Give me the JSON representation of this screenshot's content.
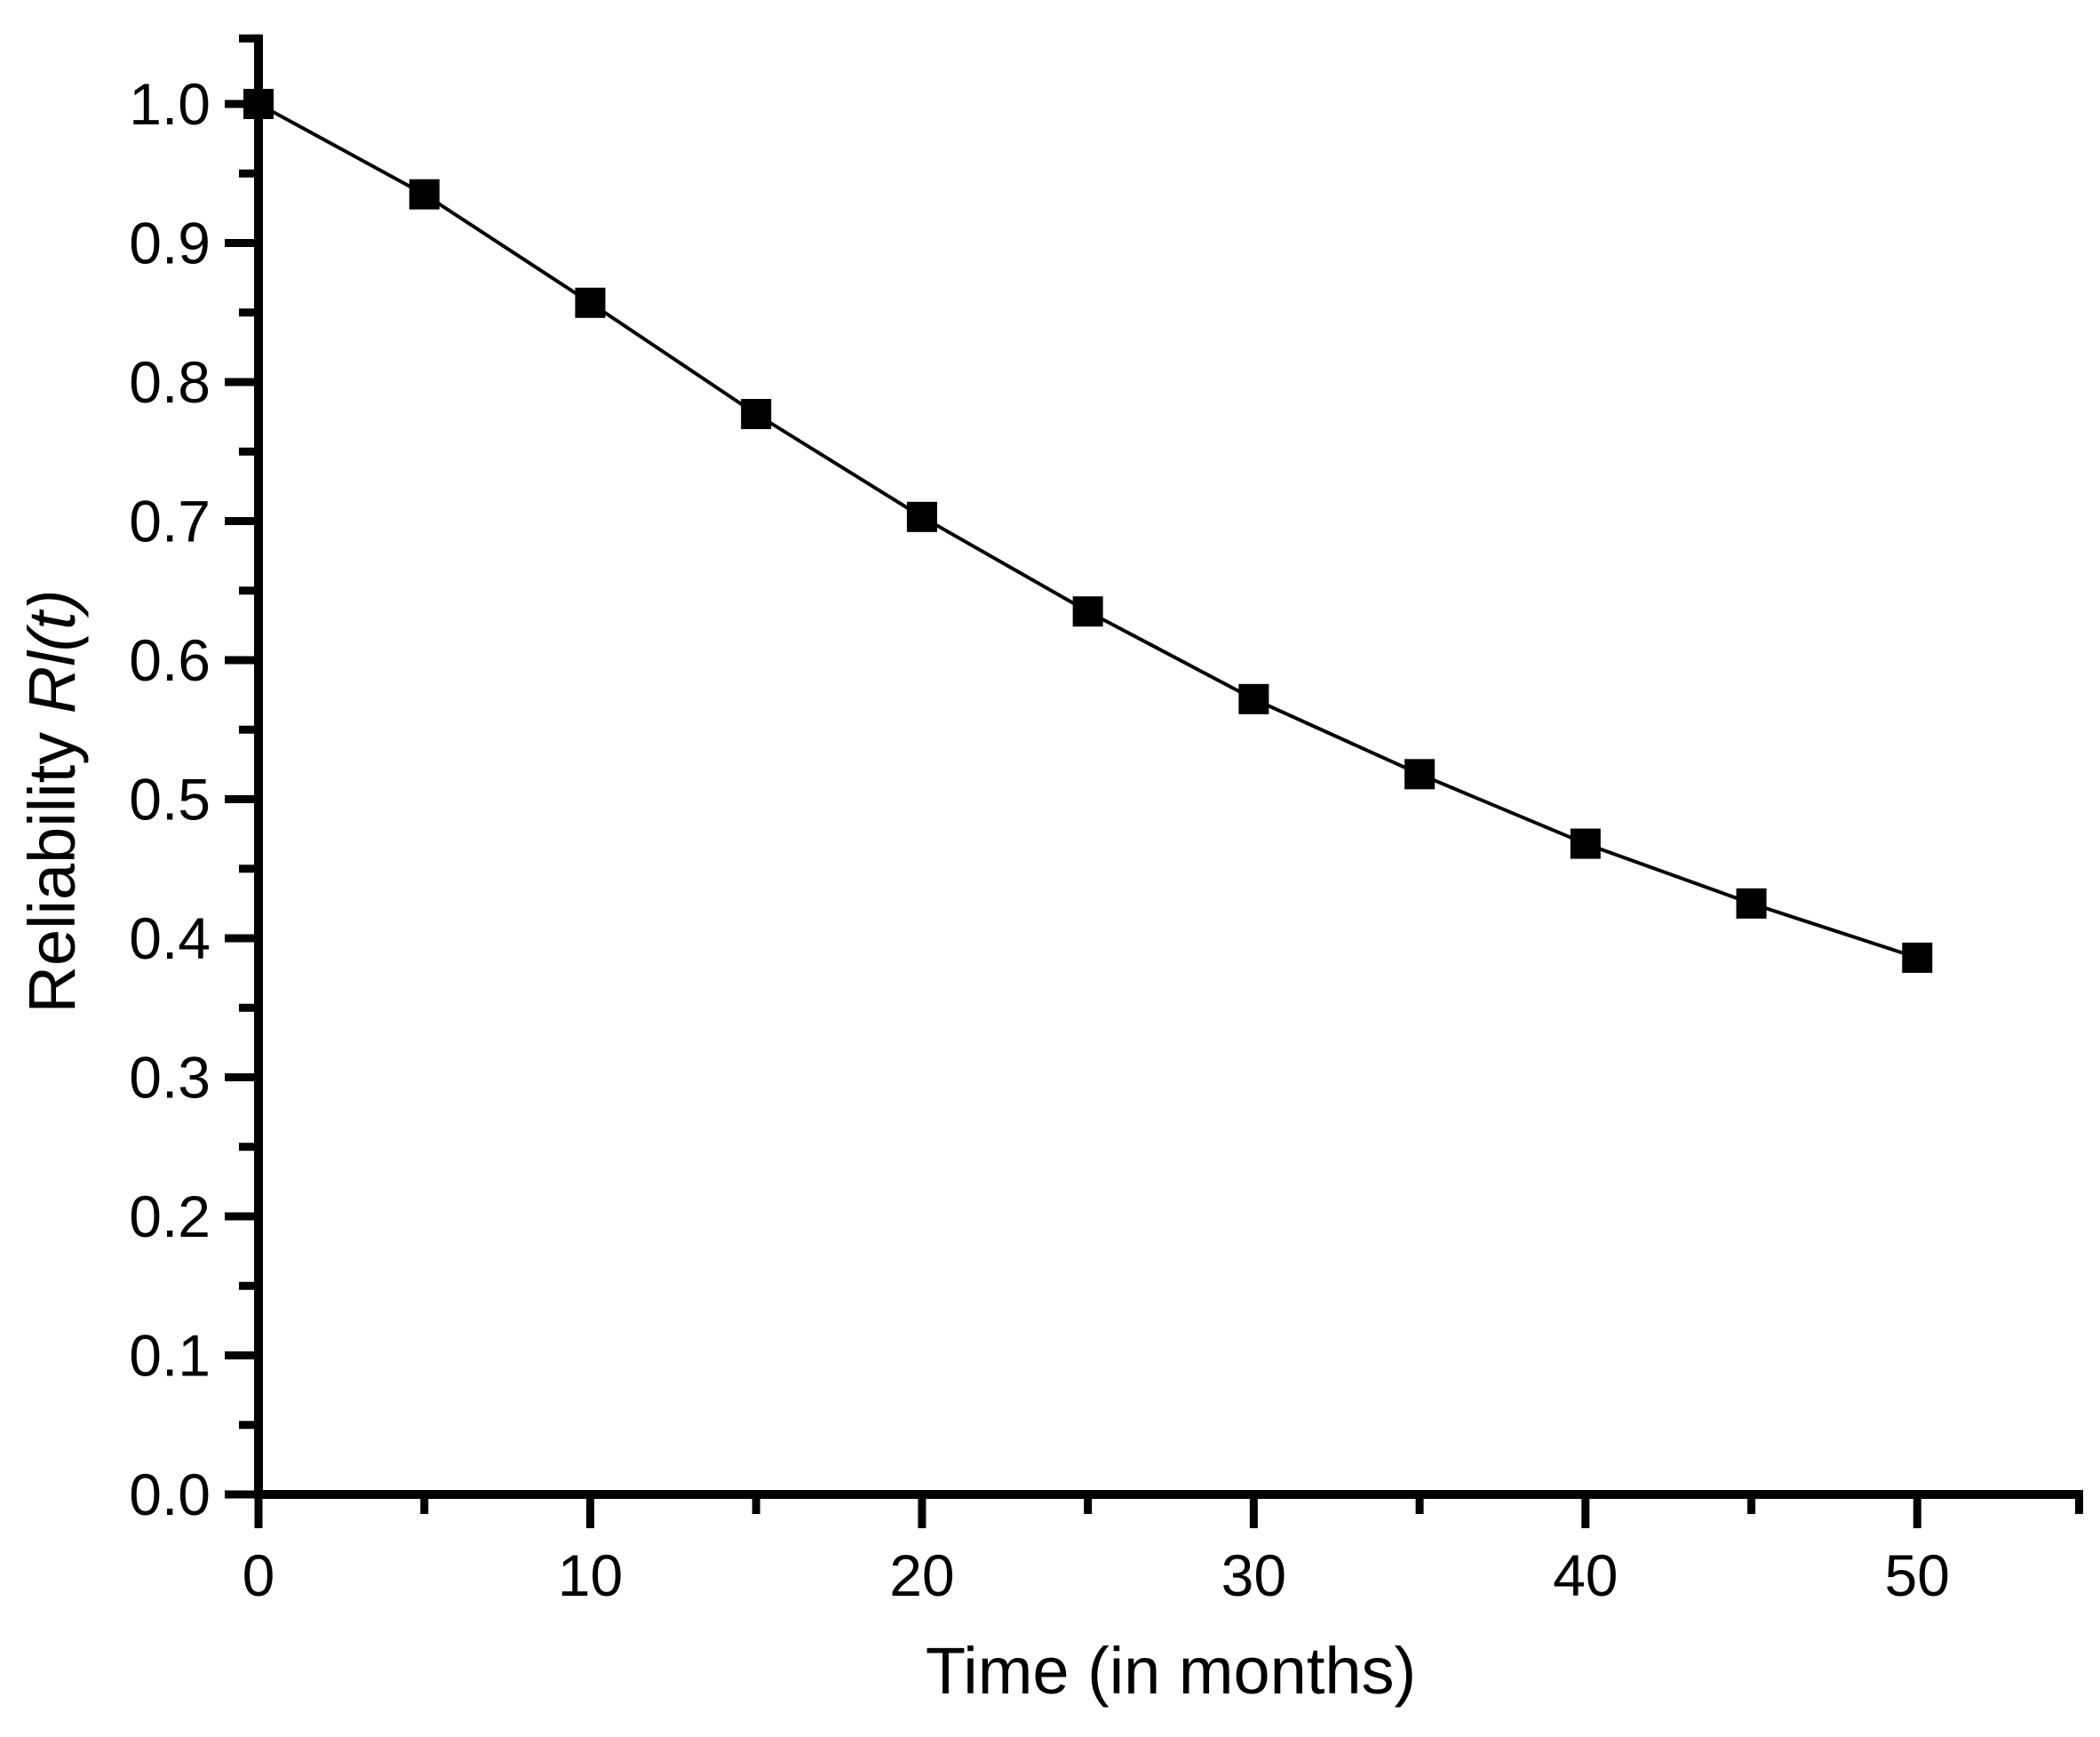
{
  "chart_data": {
    "type": "line",
    "title": "",
    "xlabel": "Time (in months)",
    "ylabel": "Reliability Rl(t)",
    "ylabel_regular": "Reliability ",
    "ylabel_italic": "Rl(t)",
    "x": [
      0,
      5,
      10,
      15,
      20,
      25,
      30,
      35,
      40,
      45,
      50
    ],
    "y": [
      1.0,
      0.935,
      0.857,
      0.777,
      0.703,
      0.635,
      0.572,
      0.518,
      0.468,
      0.425,
      0.386
    ],
    "series_name": "Reliability",
    "xlim": [
      0,
      55
    ],
    "ylim": [
      0,
      1.05
    ],
    "x_major_ticks": [
      0,
      10,
      20,
      30,
      40,
      50
    ],
    "x_major_labels": [
      "0",
      "10",
      "20",
      "30",
      "40",
      "50"
    ],
    "x_minor_ticks": [
      5,
      15,
      25,
      35,
      45,
      55
    ],
    "y_major_ticks": [
      0.0,
      0.1,
      0.2,
      0.3,
      0.4,
      0.5,
      0.6,
      0.7,
      0.8,
      0.9,
      1.0
    ],
    "y_major_labels": [
      "0.0",
      "0.1",
      "0.2",
      "0.3",
      "0.4",
      "0.5",
      "0.6",
      "0.7",
      "0.8",
      "0.9",
      "1.0"
    ],
    "y_minor_ticks": [
      0.05,
      0.15,
      0.25,
      0.35,
      0.45,
      0.55,
      0.65,
      0.75,
      0.85,
      0.95,
      1.05
    ],
    "marker": "filled-square",
    "marker_color": "#000000",
    "line_color": "#000000",
    "axis_color": "#000000",
    "background": "#ffffff",
    "grid": false,
    "legend": null
  }
}
